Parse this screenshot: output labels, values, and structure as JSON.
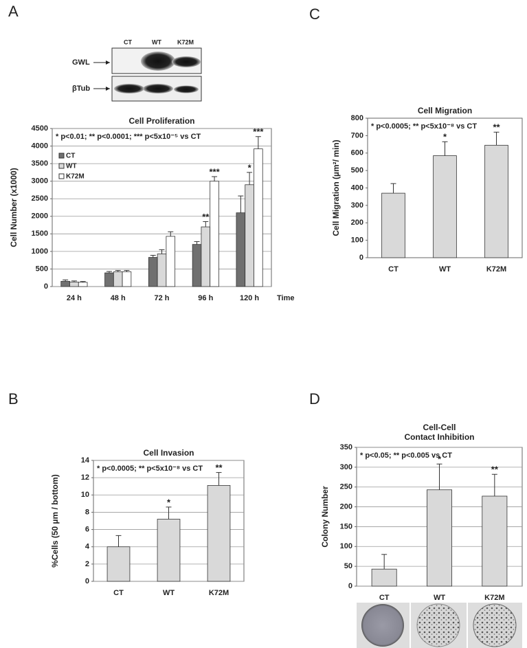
{
  "panel_labels": [
    "A",
    "B",
    "C",
    "D"
  ],
  "blot": {
    "lanes": [
      "CT",
      "WT",
      "K72M"
    ],
    "bands": [
      "GWL",
      "βTub"
    ]
  },
  "chart_data": [
    {
      "type": "bar",
      "title": "Cell Proliferation",
      "annotation": "* p<0.01; ** p<0.0001; *** p<5x10⁻⁵ vs  CT",
      "ylabel": "Cell Number (x1000)",
      "xlabel": "Time",
      "categories": [
        "24 h",
        "48 h",
        "72 h",
        "96 h",
        "120 h"
      ],
      "series": [
        {
          "name": "CT",
          "color": "#707070",
          "values": [
            150,
            390,
            830,
            1200,
            2100
          ],
          "errors": [
            40,
            40,
            60,
            80,
            480
          ],
          "significance": [
            null,
            null,
            null,
            null,
            null
          ]
        },
        {
          "name": "WT",
          "color": "#d9d9d9",
          "values": [
            130,
            420,
            930,
            1700,
            2900
          ],
          "errors": [
            30,
            40,
            120,
            150,
            350
          ],
          "significance": [
            null,
            null,
            null,
            "**",
            "*"
          ]
        },
        {
          "name": "K72M",
          "color": "#ffffff",
          "values": [
            120,
            420,
            1430,
            3000,
            3920
          ],
          "errors": [
            25,
            40,
            130,
            130,
            350
          ],
          "significance": [
            null,
            null,
            null,
            "***",
            "***"
          ]
        }
      ],
      "ylim": [
        0,
        4500
      ],
      "yticks": [
        0,
        500,
        1000,
        1500,
        2000,
        2500,
        3000,
        3500,
        4000,
        4500
      ],
      "grid": true,
      "legend": "upper left"
    },
    {
      "type": "bar",
      "title": "Cell Invasion",
      "annotation": "* p<0.0005; ** p<5x10⁻⁸ vs CT",
      "ylabel": "%Cells (50 µm / bottom)",
      "categories": [
        "CT",
        "WT",
        "K72M"
      ],
      "values": [
        4.0,
        7.2,
        11.1
      ],
      "errors": [
        1.3,
        1.4,
        1.5
      ],
      "significance": [
        null,
        "*",
        "**"
      ],
      "color": "#d9d9d9",
      "ylim": [
        0,
        14
      ],
      "yticks": [
        0,
        2,
        4,
        6,
        8,
        10,
        12,
        14
      ],
      "grid": true
    },
    {
      "type": "bar",
      "title": "Cell Migration",
      "annotation": "* p<0.0005; ** p<5x10⁻⁸ vs  CT",
      "ylabel": "Cell Migration (µm²/ min)",
      "categories": [
        "CT",
        "WT",
        "K72M"
      ],
      "values": [
        370,
        585,
        645
      ],
      "errors": [
        55,
        80,
        75
      ],
      "significance": [
        null,
        "*",
        "**"
      ],
      "color": "#d9d9d9",
      "ylim": [
        0,
        800
      ],
      "yticks": [
        0,
        100,
        200,
        300,
        400,
        500,
        600,
        700,
        800
      ],
      "grid": false
    },
    {
      "type": "bar",
      "title": [
        "Cell-Cell",
        "Contact Inhibition"
      ],
      "annotation": "* p<0.05; ** p<0.005 vs CT",
      "ylabel": "Colony Number",
      "categories": [
        "CT",
        "WT",
        "K72M"
      ],
      "values": [
        43,
        243,
        227
      ],
      "errors": [
        37,
        65,
        55
      ],
      "significance": [
        null,
        "*",
        "**"
      ],
      "color": "#d9d9d9",
      "ylim": [
        0,
        350
      ],
      "yticks": [
        0,
        50,
        100,
        150,
        200,
        250,
        300,
        350
      ],
      "grid": true
    }
  ]
}
